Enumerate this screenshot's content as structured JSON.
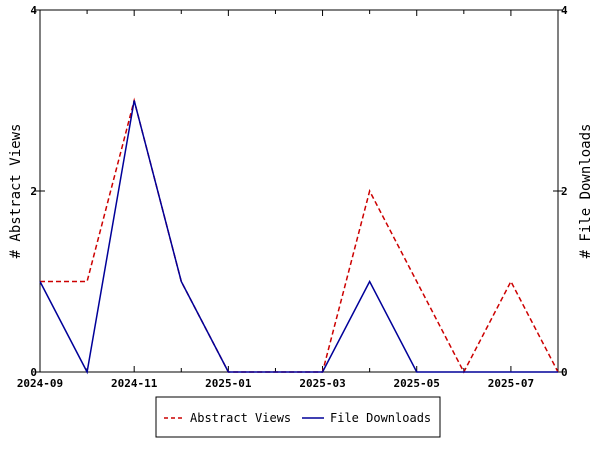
{
  "chart_data": {
    "type": "line",
    "x": [
      "2024-09",
      "2024-10",
      "2024-11",
      "2024-12",
      "2025-01",
      "2025-02",
      "2025-03",
      "2025-04",
      "2025-05",
      "2025-06",
      "2025-07",
      "2025-08"
    ],
    "x_tick_labels": [
      "2024-09",
      "2024-11",
      "2025-01",
      "2025-03",
      "2025-05",
      "2025-07"
    ],
    "series": [
      {
        "name": "Abstract Views",
        "axis": "left",
        "color": "#cc0000",
        "style": "dashed",
        "values": [
          1,
          1,
          3,
          1,
          0,
          0,
          0,
          2,
          1,
          0,
          1,
          0
        ]
      },
      {
        "name": "File Downloads",
        "axis": "right",
        "color": "#000099",
        "style": "solid",
        "values": [
          1,
          0,
          3,
          1,
          0,
          0,
          0,
          1,
          0,
          0,
          0,
          0
        ]
      }
    ],
    "ylabel": "# Abstract Views",
    "ylabel_right": "# File Downloads",
    "ylim": [
      0,
      4
    ],
    "yticks": [
      0,
      2,
      4
    ],
    "grid": false,
    "legend_position": "bottom-center"
  }
}
